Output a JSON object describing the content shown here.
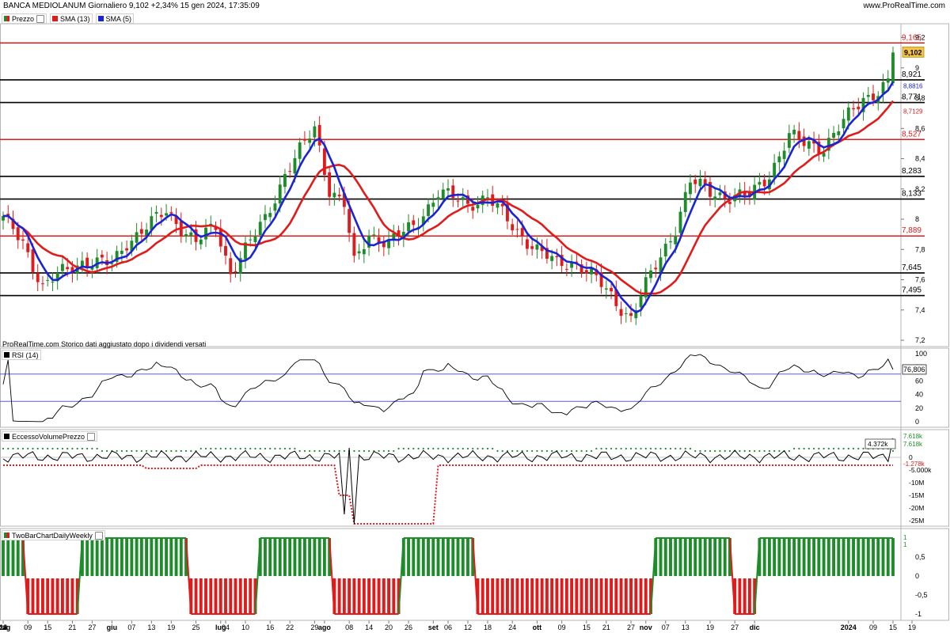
{
  "header": {
    "title": "BANCA MEDIOLANUM Giornaliero 9,102 +2,34% 15 gen 2024, 17:35:09",
    "site": "www.ProRealTime.com"
  },
  "colors": {
    "up": "#1e8c2a",
    "down": "#e01b1b",
    "sma13": "#e01b1b",
    "sma5": "#1a23d6",
    "level_red": "#e01b1b",
    "level_black": "#000000",
    "rsi_line": "#000000",
    "rsi_band": "#5a5ad6",
    "green_dot": "#1e8c2a",
    "red_dot": "#e01b1b",
    "last_price_bg": "#f5c542"
  },
  "price_panel": {
    "legend": [
      "Prezzo",
      "SMA (13)",
      "SMA (5)"
    ],
    "note": "ProRealTime.com Storico dati aggiustato dopo i dividendi versati",
    "last_price": "9,102",
    "sma5_value": "8,8816",
    "sma13_value": "8,7129",
    "levels": [
      {
        "value": 9.165,
        "label": "9,165",
        "color": "red"
      },
      {
        "value": 8.921,
        "label": "8,921",
        "color": "black"
      },
      {
        "value": 8.771,
        "label": "8,771",
        "color": "black"
      },
      {
        "value": 8.527,
        "label": "8,527",
        "color": "red"
      },
      {
        "value": 8.283,
        "label": "8,283",
        "color": "black"
      },
      {
        "value": 8.133,
        "label": "8,133",
        "color": "black"
      },
      {
        "value": 7.889,
        "label": "7,889",
        "color": "red"
      },
      {
        "value": 7.645,
        "label": "7,645",
        "color": "black"
      },
      {
        "value": 7.495,
        "label": "7,495",
        "color": "black"
      }
    ],
    "y_ticks": [
      "9,2",
      "9",
      "8,8",
      "8,6",
      "8,4",
      "8,2",
      "8",
      "7,8",
      "7,6",
      "7,4",
      "7,2"
    ]
  },
  "rsi_panel": {
    "legend": "RSI (14)",
    "value": "76,806",
    "y_ticks": [
      "100",
      "80",
      "60",
      "40",
      "20",
      "0"
    ]
  },
  "evp_panel": {
    "legend": "EccessoVolumePrezzo",
    "values": [
      "4.372k",
      "7.618k",
      "7.618k",
      "-1.278k"
    ],
    "y_ticks": [
      "0",
      "-5.000k",
      "-10M",
      "-15M",
      "-20M",
      "-25M"
    ]
  },
  "twobar_panel": {
    "legend": "TwoBarChartDailyWeekly",
    "right_labels": [
      "1",
      "1"
    ],
    "y_ticks": [
      "0,5",
      "0",
      "-0,5",
      "-1"
    ]
  },
  "x_axis": {
    "labels": [
      "mag",
      "12",
      "18",
      "24",
      "giu",
      "09",
      "15",
      "21",
      "27",
      "lug",
      "07",
      "13",
      "19",
      "25",
      "ago",
      "04",
      "10",
      "16",
      "22",
      "29",
      "set",
      "08",
      "14",
      "20",
      "26",
      "ott",
      "06",
      "12",
      "18",
      "24",
      "nov",
      "09",
      "15",
      "21",
      "27",
      "dic",
      "07",
      "13",
      "19",
      "27",
      "2024",
      "09",
      "15",
      "19"
    ],
    "bold": [
      "mag",
      "giu",
      "lug",
      "ago",
      "set",
      "ott",
      "nov",
      "dic",
      "2024"
    ]
  },
  "chart_data": {
    "type": "candlestick",
    "title": "BANCA MEDIOLANUM Giornaliero",
    "ylim": [
      7.2,
      9.25
    ],
    "x_start": "2023-05-02",
    "x_end": "2024-01-15",
    "anchors": [
      {
        "date": "2023-05-02",
        "close": 8.0
      },
      {
        "date": "2023-05-08",
        "close": 7.85
      },
      {
        "date": "2023-05-12",
        "close": 7.55
      },
      {
        "date": "2023-05-18",
        "close": 7.65
      },
      {
        "date": "2023-05-24",
        "close": 7.72
      },
      {
        "date": "2023-06-01",
        "close": 7.7
      },
      {
        "date": "2023-06-06",
        "close": 7.85
      },
      {
        "date": "2023-06-12",
        "close": 7.95
      },
      {
        "date": "2023-06-16",
        "close": 8.05
      },
      {
        "date": "2023-06-21",
        "close": 7.95
      },
      {
        "date": "2023-06-26",
        "close": 7.85
      },
      {
        "date": "2023-06-30",
        "close": 7.95
      },
      {
        "date": "2023-07-05",
        "close": 7.65
      },
      {
        "date": "2023-07-10",
        "close": 7.8
      },
      {
        "date": "2023-07-14",
        "close": 8.0
      },
      {
        "date": "2023-07-20",
        "close": 8.3
      },
      {
        "date": "2023-07-26",
        "close": 8.5
      },
      {
        "date": "2023-07-28",
        "close": 8.6
      },
      {
        "date": "2023-08-02",
        "close": 8.2
      },
      {
        "date": "2023-08-07",
        "close": 8.1
      },
      {
        "date": "2023-08-09",
        "close": 7.7
      },
      {
        "date": "2023-08-14",
        "close": 7.9
      },
      {
        "date": "2023-08-21",
        "close": 7.85
      },
      {
        "date": "2023-08-28",
        "close": 7.95
      },
      {
        "date": "2023-09-04",
        "close": 8.18
      },
      {
        "date": "2023-09-12",
        "close": 8.1
      },
      {
        "date": "2023-09-18",
        "close": 8.15
      },
      {
        "date": "2023-09-25",
        "close": 7.95
      },
      {
        "date": "2023-10-02",
        "close": 7.8
      },
      {
        "date": "2023-10-06",
        "close": 7.7
      },
      {
        "date": "2023-10-12",
        "close": 7.72
      },
      {
        "date": "2023-10-18",
        "close": 7.6
      },
      {
        "date": "2023-10-24",
        "close": 7.45
      },
      {
        "date": "2023-10-27",
        "close": 7.35
      },
      {
        "date": "2023-10-31",
        "close": 7.5
      },
      {
        "date": "2023-11-06",
        "close": 7.75
      },
      {
        "date": "2023-11-09",
        "close": 7.95
      },
      {
        "date": "2023-11-14",
        "close": 8.25
      },
      {
        "date": "2023-11-20",
        "close": 8.18
      },
      {
        "date": "2023-11-24",
        "close": 8.15
      },
      {
        "date": "2023-11-30",
        "close": 8.15
      },
      {
        "date": "2023-12-06",
        "close": 8.3
      },
      {
        "date": "2023-12-12",
        "close": 8.55
      },
      {
        "date": "2023-12-15",
        "close": 8.5
      },
      {
        "date": "2023-12-21",
        "close": 8.48
      },
      {
        "date": "2023-12-28",
        "close": 8.6
      },
      {
        "date": "2024-01-05",
        "close": 8.8
      },
      {
        "date": "2024-01-10",
        "close": 8.85
      },
      {
        "date": "2024-01-12",
        "close": 8.9
      },
      {
        "date": "2024-01-15",
        "close": 9.102
      }
    ]
  }
}
